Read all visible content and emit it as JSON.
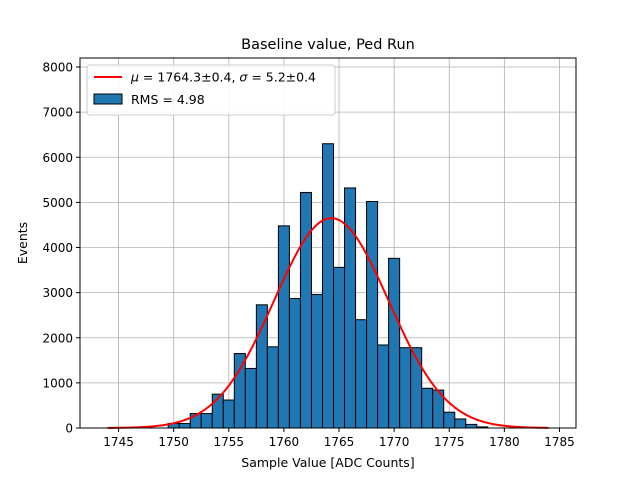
{
  "chart_data": {
    "type": "bar",
    "title": "Baseline value, Ped Run",
    "xlabel": "Sample Value [ADC Counts]",
    "ylabel": "Events",
    "xlim": [
      1741.5,
      1786.5
    ],
    "ylim": [
      0,
      8200
    ],
    "xticks": [
      1745,
      1750,
      1755,
      1760,
      1765,
      1770,
      1775,
      1780,
      1785
    ],
    "yticks": [
      0,
      1000,
      2000,
      3000,
      4000,
      5000,
      6000,
      7000,
      8000
    ],
    "grid": true,
    "legend_position": "top-left",
    "bin_width": 1,
    "bins": {
      "x": [
        1750,
        1751,
        1752,
        1753,
        1754,
        1755,
        1756,
        1757,
        1758,
        1759,
        1760,
        1761,
        1762,
        1763,
        1764,
        1765,
        1766,
        1767,
        1768,
        1769,
        1770,
        1771,
        1772,
        1773,
        1774,
        1775,
        1776,
        1777,
        1778
      ],
      "counts": [
        100,
        100,
        320,
        320,
        750,
        620,
        1650,
        1320,
        2730,
        1800,
        4480,
        2870,
        5220,
        2960,
        6300,
        3560,
        5320,
        2400,
        5020,
        1840,
        3760,
        1780,
        1780,
        880,
        840,
        350,
        200,
        80,
        25
      ],
      "name": "RMS = 4.98",
      "color": "#1f77b4",
      "edge_color": "#000000"
    },
    "fit": {
      "type": "gaussian",
      "name": "μ = 1764.3±0.4, σ = 5.2±0.4",
      "mu": 1764.3,
      "sigma": 5.2,
      "amplitude": 4650,
      "x_range": [
        1744,
        1784
      ],
      "color": "#ff0000"
    },
    "legend": [
      {
        "label_math": "μ = ",
        "label_value": "1764.3±0.4, ",
        "label_math2": "σ = ",
        "label_value2": "5.2±0.4"
      },
      {
        "label": "RMS = 4.98"
      }
    ]
  }
}
